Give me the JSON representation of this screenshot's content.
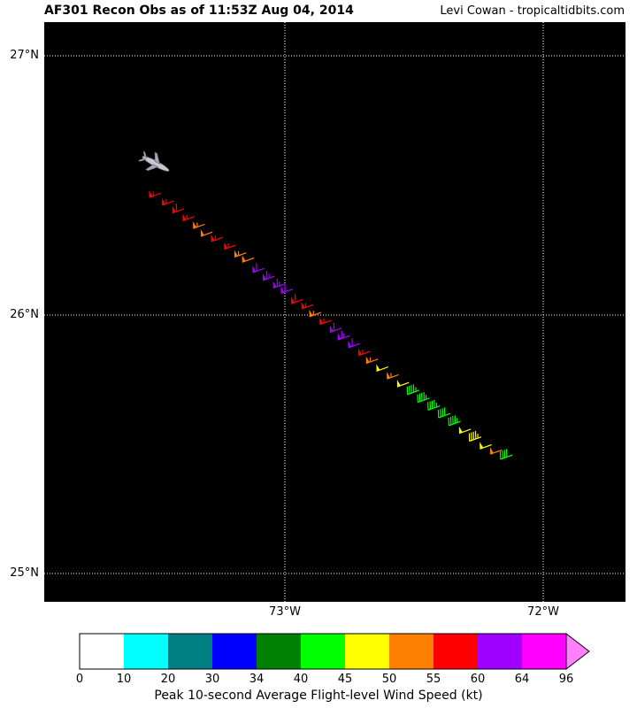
{
  "header": {
    "title": "AF301 Recon Obs as of 11:53Z Aug 04, 2014",
    "credit": "Levi Cowan - tropicaltidbits.com"
  },
  "map": {
    "background": "#000000",
    "lat_labels": [
      "27°N",
      "26°N",
      "25°N"
    ],
    "lon_labels": [
      "73°W",
      "72°W"
    ],
    "aircraft_icon": "aircraft-icon"
  },
  "observations": [
    {
      "lon": -73.48,
      "lat": 26.47,
      "speed": 57
    },
    {
      "lon": -73.43,
      "lat": 26.44,
      "speed": 57
    },
    {
      "lon": -73.39,
      "lat": 26.41,
      "speed": 58
    },
    {
      "lon": -73.35,
      "lat": 26.38,
      "speed": 57
    },
    {
      "lon": -73.31,
      "lat": 26.35,
      "speed": 53
    },
    {
      "lon": -73.28,
      "lat": 26.32,
      "speed": 52
    },
    {
      "lon": -73.24,
      "lat": 26.3,
      "speed": 56
    },
    {
      "lon": -73.19,
      "lat": 26.27,
      "speed": 56
    },
    {
      "lon": -73.15,
      "lat": 26.24,
      "speed": 53
    },
    {
      "lon": -73.12,
      "lat": 26.22,
      "speed": 52
    },
    {
      "lon": -73.08,
      "lat": 26.18,
      "speed": 62
    },
    {
      "lon": -73.04,
      "lat": 26.15,
      "speed": 63
    },
    {
      "lon": -73.0,
      "lat": 26.12,
      "speed": 63
    },
    {
      "lon": -72.97,
      "lat": 26.1,
      "speed": 62
    },
    {
      "lon": -72.93,
      "lat": 26.06,
      "speed": 58
    },
    {
      "lon": -72.89,
      "lat": 26.04,
      "speed": 57
    },
    {
      "lon": -72.86,
      "lat": 26.01,
      "speed": 53
    },
    {
      "lon": -72.82,
      "lat": 25.98,
      "speed": 56
    },
    {
      "lon": -72.78,
      "lat": 25.95,
      "speed": 62
    },
    {
      "lon": -72.75,
      "lat": 25.92,
      "speed": 63
    },
    {
      "lon": -72.71,
      "lat": 25.89,
      "speed": 62
    },
    {
      "lon": -72.67,
      "lat": 25.86,
      "speed": 57
    },
    {
      "lon": -72.64,
      "lat": 25.83,
      "speed": 53
    },
    {
      "lon": -72.6,
      "lat": 25.8,
      "speed": 48
    },
    {
      "lon": -72.56,
      "lat": 25.77,
      "speed": 53
    },
    {
      "lon": -72.52,
      "lat": 25.74,
      "speed": 48
    },
    {
      "lon": -72.48,
      "lat": 25.71,
      "speed": 44
    },
    {
      "lon": -72.44,
      "lat": 25.68,
      "speed": 44
    },
    {
      "lon": -72.4,
      "lat": 25.65,
      "speed": 43
    },
    {
      "lon": -72.36,
      "lat": 25.62,
      "speed": 42
    },
    {
      "lon": -72.32,
      "lat": 25.59,
      "speed": 43
    },
    {
      "lon": -72.28,
      "lat": 25.56,
      "speed": 48
    },
    {
      "lon": -72.24,
      "lat": 25.53,
      "speed": 47
    },
    {
      "lon": -72.2,
      "lat": 25.5,
      "speed": 49
    },
    {
      "lon": -72.16,
      "lat": 25.48,
      "speed": 52
    },
    {
      "lon": -72.12,
      "lat": 25.46,
      "speed": 42
    }
  ],
  "colorbar": {
    "caption": "Peak 10-second Average Flight-level Wind Speed (kt)",
    "ticks": [
      "0",
      "10",
      "20",
      "30",
      "34",
      "40",
      "45",
      "50",
      "55",
      "60",
      "64",
      "96"
    ],
    "bins": [
      {
        "min": 0,
        "max": 10,
        "color": "#ffffff"
      },
      {
        "min": 10,
        "max": 20,
        "color": "#00ffff"
      },
      {
        "min": 20,
        "max": 30,
        "color": "#008080"
      },
      {
        "min": 30,
        "max": 34,
        "color": "#0000ff"
      },
      {
        "min": 34,
        "max": 40,
        "color": "#008000"
      },
      {
        "min": 40,
        "max": 45,
        "color": "#00ff00"
      },
      {
        "min": 45,
        "max": 50,
        "color": "#ffff00"
      },
      {
        "min": 50,
        "max": 55,
        "color": "#ff8000"
      },
      {
        "min": 55,
        "max": 60,
        "color": "#ff0000"
      },
      {
        "min": 60,
        "max": 64,
        "color": "#a000ff"
      },
      {
        "min": 64,
        "max": 96,
        "color": "#ff00ff"
      }
    ],
    "extend_color": "#ff80ff"
  }
}
